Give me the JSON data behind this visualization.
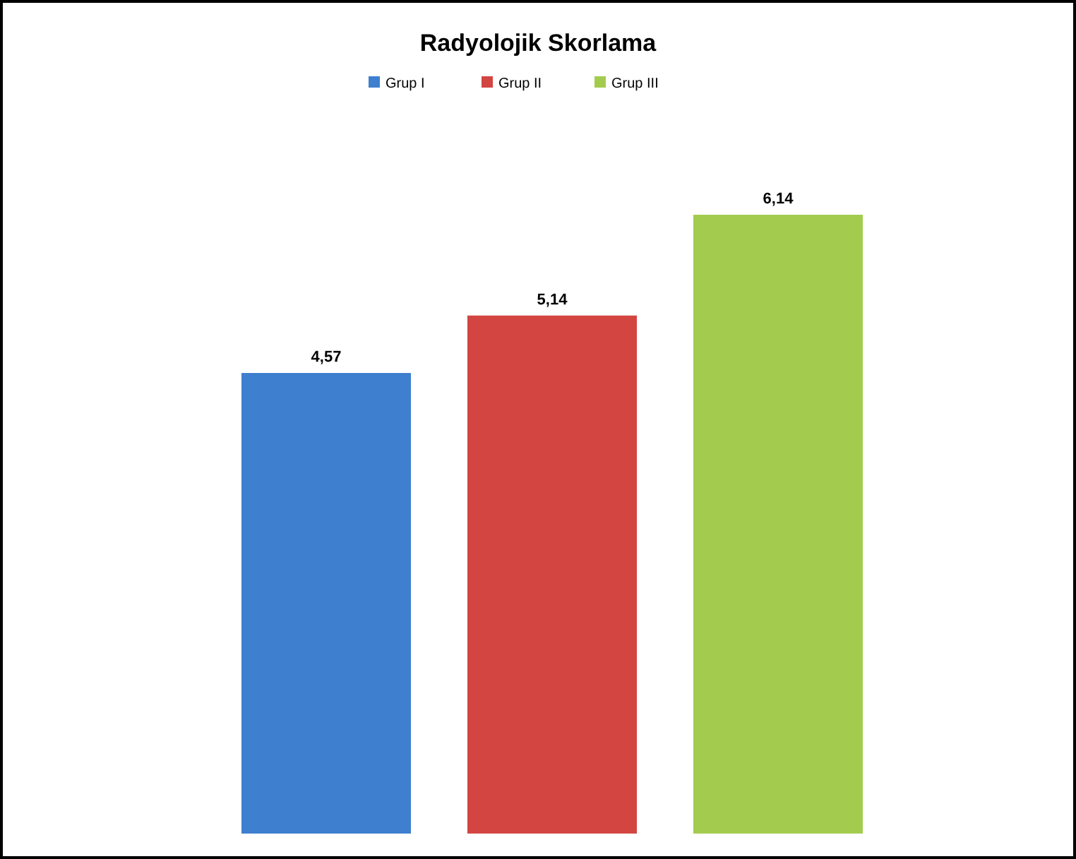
{
  "chart_data": {
    "type": "bar",
    "title": "Radyolojik Skorlama",
    "categories": [
      null
    ],
    "series": [
      {
        "name": "Grup I",
        "color": "#3f7fcf",
        "values": [
          4.57
        ],
        "value_labels": [
          "4,57"
        ]
      },
      {
        "name": "Grup II",
        "color": "#d24541",
        "values": [
          5.14
        ],
        "value_labels": [
          "5,14"
        ]
      },
      {
        "name": "Grup III",
        "color": "#a3cc4e",
        "values": [
          6.14
        ],
        "value_labels": [
          "6,14"
        ]
      }
    ],
    "legend": "top",
    "grid": false
  }
}
